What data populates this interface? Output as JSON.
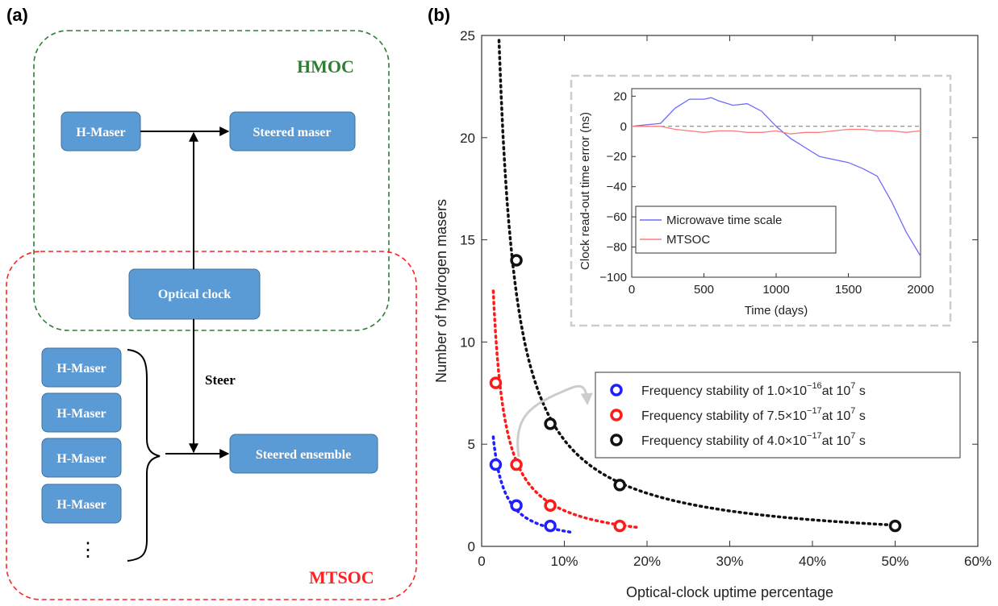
{
  "panel_a": {
    "label": "(a)",
    "hmoc_label": "HMOC",
    "mtsoc_label": "MTSOC",
    "steer_label": "Steer",
    "boxes": {
      "h_maser_top": "H-Maser",
      "steered_maser": "Steered maser",
      "optical_clock": "Optical clock",
      "steered_ensemble": "Steered ensemble",
      "ensemble_masers": [
        "H-Maser",
        "H-Maser",
        "H-Maser",
        "H-Maser"
      ]
    },
    "ellipsis": "⋮",
    "colors": {
      "box": "#5b9bd5",
      "hmoc": "#2e7d32",
      "mtsoc": "#ff2222"
    }
  },
  "panel_b": {
    "label": "(b)",
    "chart_data": [
      {
        "type": "scatter",
        "xlabel": "Optical-clock uptime percentage",
        "ylabel": "Number of hydrogen masers",
        "xlim": [
          0,
          60
        ],
        "ylim": [
          0,
          25
        ],
        "x_ticks": [
          0,
          10,
          20,
          30,
          40,
          50,
          60
        ],
        "x_tick_labels": [
          "0",
          "10%",
          "20%",
          "30%",
          "40%",
          "50%",
          "60%"
        ],
        "y_ticks": [
          0,
          5,
          10,
          15,
          20,
          25
        ],
        "y_tick_labels": [
          "0",
          "5",
          "10",
          "15",
          "20",
          "25"
        ],
        "legend_position": "middle-right",
        "series": [
          {
            "name_prefix": "Frequency stability of 1.0×10",
            "name_exp": "−16",
            "name_mid": "at 10",
            "name_exp2": "7",
            "name_suffix": " s",
            "color": "#1f1fff",
            "points": [
              {
                "x": 1.7,
                "y": 4
              },
              {
                "x": 4.2,
                "y": 2
              },
              {
                "x": 8.3,
                "y": 1
              }
            ],
            "fit_k": 7.5,
            "fit_x": [
              1.4,
              11
            ]
          },
          {
            "name_prefix": "Frequency stability of 7.5×10",
            "name_exp": "−17",
            "name_mid": "at 10",
            "name_exp2": "7",
            "name_suffix": " s",
            "color": "#ff1a1a",
            "points": [
              {
                "x": 1.7,
                "y": 8
              },
              {
                "x": 4.2,
                "y": 4
              },
              {
                "x": 8.3,
                "y": 2
              },
              {
                "x": 16.7,
                "y": 1
              }
            ],
            "fit_k": 17.5,
            "fit_x": [
              1.4,
              19
            ]
          },
          {
            "name_prefix": "Frequency stability of 4.0×10",
            "name_exp": "−17",
            "name_mid": "at 10",
            "name_exp2": "7",
            "name_suffix": " s",
            "color": "#111111",
            "points": [
              {
                "x": 4.2,
                "y": 14
              },
              {
                "x": 8.3,
                "y": 6
              },
              {
                "x": 16.7,
                "y": 3
              },
              {
                "x": 50,
                "y": 1
              }
            ],
            "fit_k": 52,
            "fit_x": [
              2.1,
              50
            ]
          }
        ]
      },
      {
        "type": "line",
        "xlabel": "Time (days)",
        "ylabel": "Clock read-out time error (ns)",
        "xlim": [
          0,
          2000
        ],
        "ylim": [
          -100,
          25
        ],
        "x_ticks": [
          0,
          500,
          1000,
          1500,
          2000
        ],
        "y_ticks": [
          20,
          0,
          -20,
          -40,
          -60,
          -80,
          -100
        ],
        "legend_position": "bottom-left",
        "series": [
          {
            "name": "Microwave time scale",
            "color": "#6b6bff",
            "x": [
              0,
              100,
              200,
              300,
              400,
              500,
              550,
              600,
              700,
              800,
              900,
              1000,
              1100,
              1200,
              1300,
              1400,
              1500,
              1600,
              1700,
              1800,
              1900,
              2000
            ],
            "y": [
              0,
              1,
              2,
              12,
              18,
              18,
              19,
              17,
              14,
              15,
              10,
              0,
              -8,
              -14,
              -20,
              -22,
              -24,
              -28,
              -33,
              -50,
              -70,
              -86
            ]
          },
          {
            "name": "MTSOC",
            "color": "#ff7a7a",
            "x": [
              0,
              100,
              200,
              300,
              400,
              500,
              600,
              700,
              800,
              900,
              1000,
              1100,
              1200,
              1300,
              1400,
              1500,
              1600,
              1700,
              1800,
              1900,
              2000
            ],
            "y": [
              0,
              0,
              0,
              -2,
              -3,
              -4,
              -3,
              -3,
              -4,
              -4,
              -3,
              -5,
              -4,
              -4,
              -3,
              -2,
              -2,
              -3,
              -3,
              -4,
              -3
            ]
          }
        ]
      }
    ]
  }
}
